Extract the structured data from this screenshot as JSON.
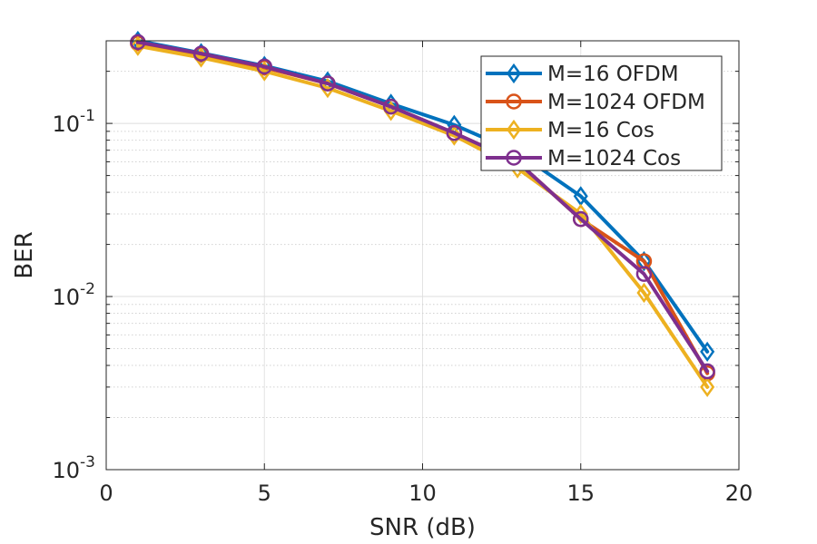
{
  "chart_data": {
    "type": "line",
    "title": "",
    "xlabel": "SNR (dB)",
    "ylabel": "BER",
    "xscale": "linear",
    "yscale": "log",
    "xlim": [
      0,
      20
    ],
    "ylim": [
      0.001,
      0.3
    ],
    "xticks": [
      0,
      5,
      10,
      15,
      20
    ],
    "xtick_labels": [
      "0",
      "5",
      "10",
      "15",
      "20"
    ],
    "yticks": [
      0.001,
      0.01,
      0.1
    ],
    "ytick_labels": [
      {
        "base": "10",
        "exp": "-3"
      },
      {
        "base": "10",
        "exp": "-2"
      },
      {
        "base": "10",
        "exp": "-1"
      }
    ],
    "grid": true,
    "minor_grid": true,
    "legend_position": "top-right",
    "series": [
      {
        "name": "M=16 OFDM",
        "color": "#0072BD",
        "marker": "diamond",
        "x": [
          1,
          3,
          5,
          7,
          9,
          11,
          13,
          15,
          17,
          19
        ],
        "y": [
          0.3,
          0.255,
          0.215,
          0.175,
          0.13,
          0.098,
          0.068,
          0.038,
          0.016,
          0.0048
        ]
      },
      {
        "name": "M=1024 OFDM",
        "color": "#D95319",
        "marker": "circle",
        "x": [
          1,
          3,
          5,
          7,
          9,
          11,
          13,
          15,
          17,
          19
        ],
        "y": [
          0.29,
          0.25,
          0.21,
          0.17,
          0.125,
          0.088,
          0.06,
          0.028,
          0.016,
          0.0036
        ]
      },
      {
        "name": "M=16 Cos",
        "color": "#EDB120",
        "marker": "diamond",
        "x": [
          1,
          3,
          5,
          7,
          9,
          11,
          13,
          15,
          17,
          19
        ],
        "y": [
          0.28,
          0.24,
          0.2,
          0.16,
          0.118,
          0.085,
          0.055,
          0.03,
          0.0105,
          0.003
        ]
      },
      {
        "name": "M=1024 Cos",
        "color": "#7E2F8E",
        "marker": "circle",
        "x": [
          1,
          3,
          5,
          7,
          9,
          11,
          13,
          15,
          17,
          19
        ],
        "y": [
          0.295,
          0.253,
          0.213,
          0.17,
          0.125,
          0.088,
          0.06,
          0.028,
          0.0135,
          0.0037
        ]
      }
    ]
  }
}
